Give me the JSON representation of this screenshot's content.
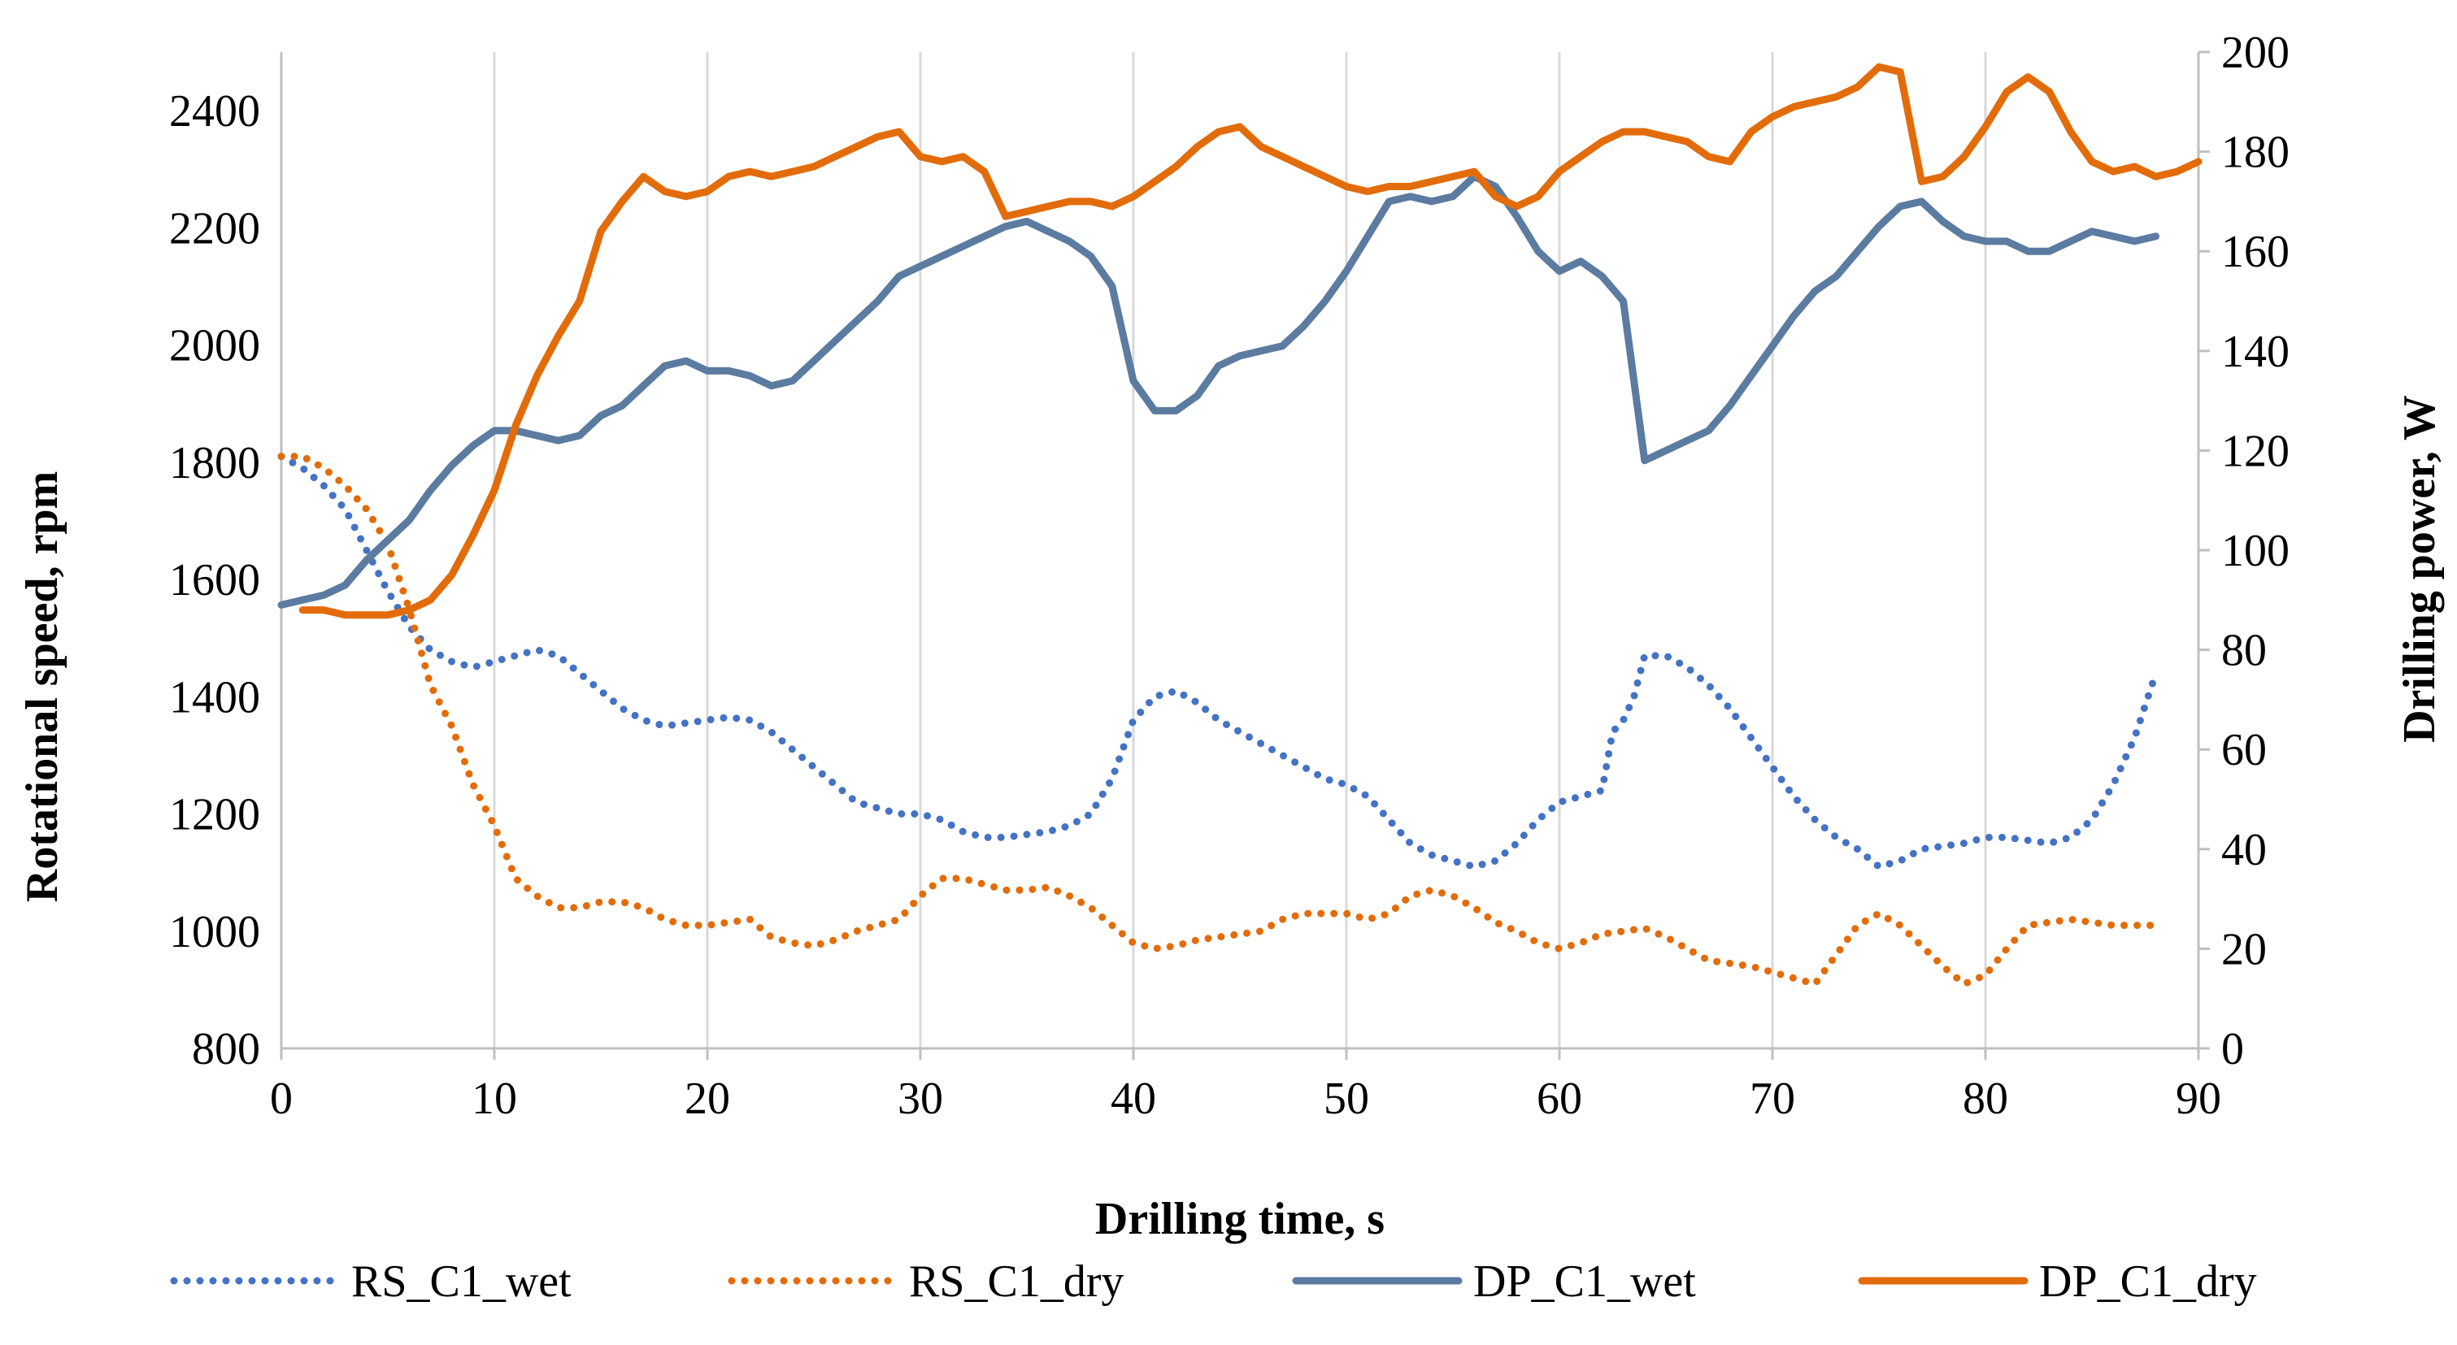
{
  "chart_data": {
    "type": "line",
    "title": "",
    "xlabel": "Drilling time, s",
    "ylabel_left": "Rotational speed, rpm",
    "ylabel_right": "Drilling power, W",
    "xlim": [
      0,
      90
    ],
    "ylim_left": [
      800,
      2500
    ],
    "ylim_right": [
      0,
      200
    ],
    "xticks": [
      "0",
      "10",
      "20",
      "30",
      "40",
      "50",
      "60",
      "70",
      "80",
      "90"
    ],
    "yticks_left": [
      "800",
      "1000",
      "1200",
      "1400",
      "1600",
      "1800",
      "2000",
      "2200",
      "2400"
    ],
    "yticks_right": [
      "0",
      "20",
      "40",
      "60",
      "80",
      "100",
      "120",
      "140",
      "160",
      "180",
      "200"
    ],
    "grid": "vertical",
    "legend_position": "bottom",
    "series": [
      {
        "name": "RS_C1_wet",
        "axis": "left",
        "style": "dotted",
        "color": "#4472C4",
        "x": [
          0,
          1,
          2,
          3,
          4,
          5,
          6,
          7,
          8,
          9,
          10,
          11,
          12,
          13,
          14,
          15,
          16,
          17,
          18,
          19,
          20,
          21,
          22,
          23,
          24,
          25,
          26,
          27,
          28,
          29,
          30,
          31,
          32,
          33,
          34,
          35,
          36,
          37,
          38,
          39,
          40,
          41,
          42,
          43,
          44,
          45,
          46,
          47,
          48,
          49,
          50,
          51,
          52,
          53,
          54,
          55,
          56,
          57,
          58,
          59,
          60,
          61,
          62,
          62.5,
          63,
          63.5,
          64,
          65,
          66,
          67,
          68,
          69,
          70,
          71,
          72,
          73,
          74,
          75,
          76,
          77,
          78,
          79,
          80,
          81,
          82,
          83,
          84,
          85,
          86,
          87,
          88
        ],
        "values": [
          1810,
          1790,
          1760,
          1720,
          1650,
          1580,
          1520,
          1480,
          1460,
          1450,
          1460,
          1470,
          1480,
          1470,
          1440,
          1410,
          1380,
          1360,
          1350,
          1355,
          1360,
          1365,
          1360,
          1340,
          1310,
          1280,
          1250,
          1220,
          1210,
          1200,
          1200,
          1190,
          1170,
          1160,
          1160,
          1165,
          1170,
          1180,
          1200,
          1260,
          1360,
          1400,
          1410,
          1390,
          1360,
          1340,
          1320,
          1300,
          1280,
          1260,
          1250,
          1230,
          1190,
          1150,
          1130,
          1120,
          1110,
          1120,
          1150,
          1190,
          1220,
          1230,
          1240,
          1340,
          1360,
          1400,
          1470,
          1470,
          1450,
          1420,
          1380,
          1330,
          1280,
          1230,
          1190,
          1160,
          1140,
          1110,
          1120,
          1140,
          1145,
          1150,
          1160,
          1160,
          1155,
          1150,
          1160,
          1190,
          1250,
          1330,
          1440
        ]
      },
      {
        "name": "RS_C1_dry",
        "axis": "left",
        "style": "dotted",
        "color": "#E36C0A",
        "x": [
          0,
          1,
          2,
          3,
          4,
          5,
          6,
          7,
          8,
          9,
          10,
          11,
          12,
          13,
          14,
          15,
          16,
          17,
          18,
          19,
          20,
          21,
          22,
          23,
          24,
          25,
          26,
          27,
          28,
          29,
          30,
          31,
          32,
          33,
          34,
          35,
          36,
          37,
          38,
          39,
          40,
          41,
          42,
          43,
          44,
          45,
          46,
          47,
          48,
          49,
          50,
          51,
          52,
          53,
          54,
          55,
          56,
          57,
          58,
          59,
          60,
          61,
          62,
          63,
          64,
          65,
          66,
          67,
          68,
          69,
          70,
          71,
          72,
          73,
          74,
          75,
          76,
          77,
          78,
          79,
          80,
          81,
          82,
          83,
          84,
          85,
          86,
          87,
          88
        ],
        "values": [
          1810,
          1810,
          1790,
          1760,
          1720,
          1660,
          1550,
          1420,
          1350,
          1250,
          1180,
          1090,
          1060,
          1040,
          1040,
          1050,
          1050,
          1040,
          1020,
          1010,
          1010,
          1015,
          1020,
          990,
          980,
          975,
          985,
          1000,
          1010,
          1020,
          1060,
          1090,
          1090,
          1080,
          1070,
          1070,
          1075,
          1060,
          1040,
          1010,
          980,
          970,
          975,
          985,
          990,
          995,
          1000,
          1020,
          1030,
          1030,
          1030,
          1020,
          1030,
          1060,
          1070,
          1060,
          1040,
          1015,
          1000,
          980,
          970,
          980,
          995,
          1000,
          1005,
          990,
          970,
          950,
          945,
          940,
          930,
          920,
          910,
          960,
          1010,
          1030,
          1010,
          975,
          940,
          910,
          925,
          970,
          1010,
          1015,
          1020,
          1015,
          1010,
          1010,
          1010
        ]
      },
      {
        "name": "DP_C1_wet",
        "axis": "right",
        "style": "solid",
        "color": "#5B7BA0",
        "x": [
          0,
          1,
          2,
          3,
          4,
          5,
          6,
          7,
          8,
          9,
          10,
          11,
          12,
          13,
          14,
          15,
          16,
          17,
          18,
          19,
          20,
          21,
          22,
          23,
          24,
          25,
          26,
          27,
          28,
          29,
          30,
          31,
          32,
          33,
          34,
          35,
          36,
          37,
          38,
          39,
          40,
          41,
          42,
          43,
          44,
          45,
          46,
          47,
          48,
          49,
          50,
          51,
          52,
          53,
          54,
          55,
          56,
          57,
          58,
          59,
          60,
          61,
          62,
          63,
          64,
          65,
          66,
          67,
          68,
          69,
          70,
          71,
          72,
          73,
          74,
          75,
          76,
          77,
          78,
          79,
          80,
          81,
          82,
          83,
          84,
          85,
          86,
          87,
          88
        ],
        "values": [
          89,
          90,
          91,
          93,
          98,
          102,
          106,
          112,
          117,
          121,
          124,
          124,
          123,
          122,
          123,
          127,
          129,
          133,
          137,
          138,
          136,
          136,
          135,
          133,
          134,
          138,
          142,
          146,
          150,
          155,
          157,
          159,
          161,
          163,
          165,
          166,
          164,
          162,
          159,
          153,
          134,
          128,
          128,
          131,
          137,
          139,
          140,
          141,
          145,
          150,
          156,
          163,
          170,
          171,
          170,
          171,
          175,
          173,
          167,
          160,
          156,
          158,
          155,
          150,
          118,
          120,
          122,
          124,
          129,
          135,
          141,
          147,
          152,
          155,
          160,
          165,
          169,
          170,
          166,
          163,
          162,
          162,
          160,
          160,
          162,
          164,
          163,
          162,
          163
        ]
      },
      {
        "name": "DP_C1_dry",
        "axis": "right",
        "style": "solid",
        "color": "#E36C0A",
        "x": [
          1,
          2,
          3,
          4,
          5,
          6,
          7,
          8,
          9,
          10,
          11,
          12,
          13,
          14,
          15,
          16,
          17,
          18,
          19,
          20,
          21,
          22,
          23,
          24,
          25,
          26,
          27,
          28,
          29,
          30,
          31,
          32,
          33,
          34,
          35,
          36,
          37,
          38,
          39,
          40,
          41,
          42,
          43,
          44,
          45,
          46,
          47,
          48,
          49,
          50,
          51,
          52,
          53,
          54,
          55,
          56,
          57,
          58,
          59,
          60,
          61,
          62,
          63,
          64,
          65,
          66,
          67,
          68,
          69,
          70,
          71,
          72,
          73,
          74,
          75,
          76,
          77,
          78,
          79,
          80,
          81,
          82,
          83,
          84,
          85,
          86,
          87,
          88,
          89,
          90
        ],
        "values": [
          88,
          88,
          87,
          87,
          87,
          88,
          90,
          95,
          103,
          112,
          125,
          135,
          143,
          150,
          164,
          170,
          175,
          172,
          171,
          172,
          175,
          176,
          175,
          176,
          177,
          179,
          181,
          183,
          184,
          179,
          178,
          179,
          176,
          167,
          168,
          169,
          170,
          170,
          169,
          171,
          174,
          177,
          181,
          184,
          185,
          181,
          179,
          177,
          175,
          173,
          172,
          173,
          173,
          174,
          175,
          176,
          171,
          169,
          171,
          176,
          179,
          182,
          184,
          184,
          183,
          182,
          179,
          178,
          184,
          187,
          189,
          190,
          191,
          193,
          197,
          196,
          174,
          175,
          179,
          185,
          192,
          195,
          192,
          184,
          178,
          176,
          177,
          175,
          176,
          178
        ]
      }
    ]
  }
}
